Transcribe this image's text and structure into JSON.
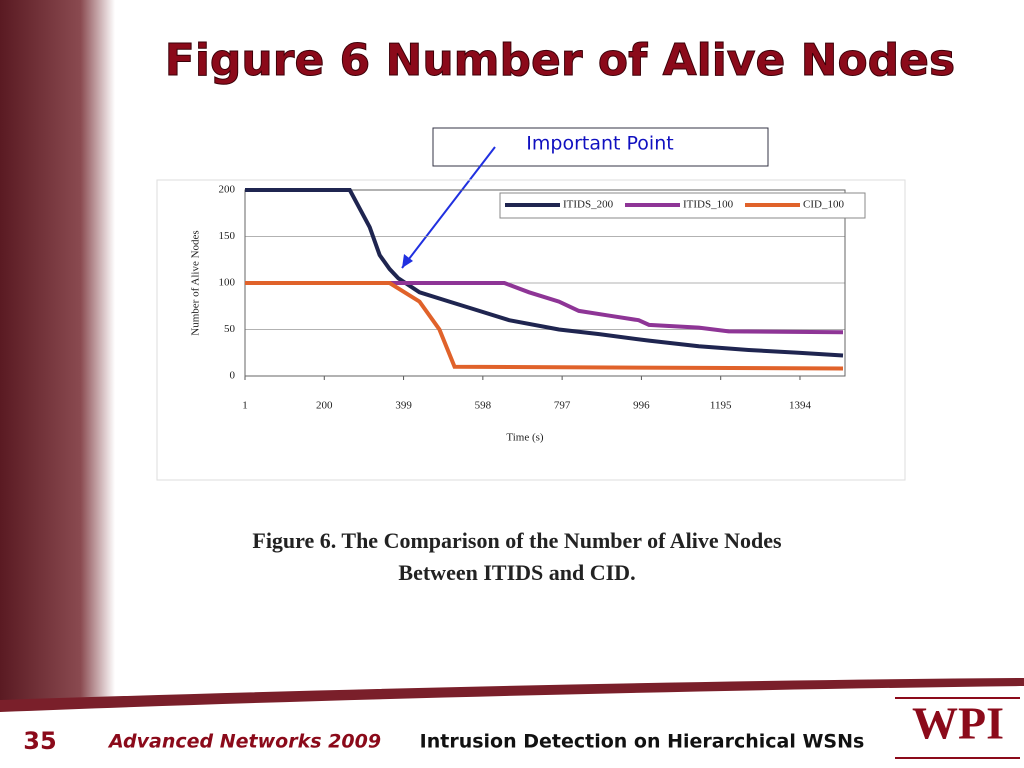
{
  "slide": {
    "title": "Figure 6 Number of Alive Nodes",
    "annotation": "Important Point",
    "page_number": "35",
    "course": "Advanced Networks 2009",
    "topic": "Intrusion Detection on Hierarchical WSNs",
    "logo": "WPI"
  },
  "chart_data": {
    "type": "line",
    "ylabel": "Number of Alive Nodes",
    "xlabel": "Time (s)",
    "caption": [
      "Figure 6. The Comparison of the Number of Alive Nodes",
      "Between ITIDS and CID."
    ],
    "xlim": [
      1,
      1507
    ],
    "xticks": [
      1,
      200,
      399,
      598,
      797,
      996,
      1195,
      1394
    ],
    "ylim": [
      0,
      200
    ],
    "yticks": [
      0,
      50,
      100,
      150,
      200
    ],
    "grid": true,
    "series": [
      {
        "name": "ITIDS_200",
        "color": "#1f2550",
        "x": [
          1,
          264,
          314,
          339,
          364,
          386,
          439,
          514,
          589,
          664,
          789,
          890,
          1015,
          1140,
          1265,
          1390,
          1502
        ],
        "values": [
          200,
          200,
          160,
          130,
          115,
          105,
          90,
          80,
          70,
          60,
          50,
          45,
          38,
          32,
          28,
          25,
          22
        ]
      },
      {
        "name": "ITIDS_100",
        "color": "#8e3596",
        "x": [
          1,
          652,
          714,
          789,
          839,
          914,
          989,
          1015,
          1140,
          1215,
          1502
        ],
        "values": [
          100,
          100,
          90,
          80,
          70,
          65,
          60,
          55,
          52,
          48,
          47
        ]
      },
      {
        "name": "CID_100",
        "color": "#e0622a",
        "x": [
          1,
          364,
          439,
          489,
          527,
          1502
        ],
        "values": [
          100,
          100,
          80,
          50,
          10,
          8
        ]
      }
    ]
  }
}
